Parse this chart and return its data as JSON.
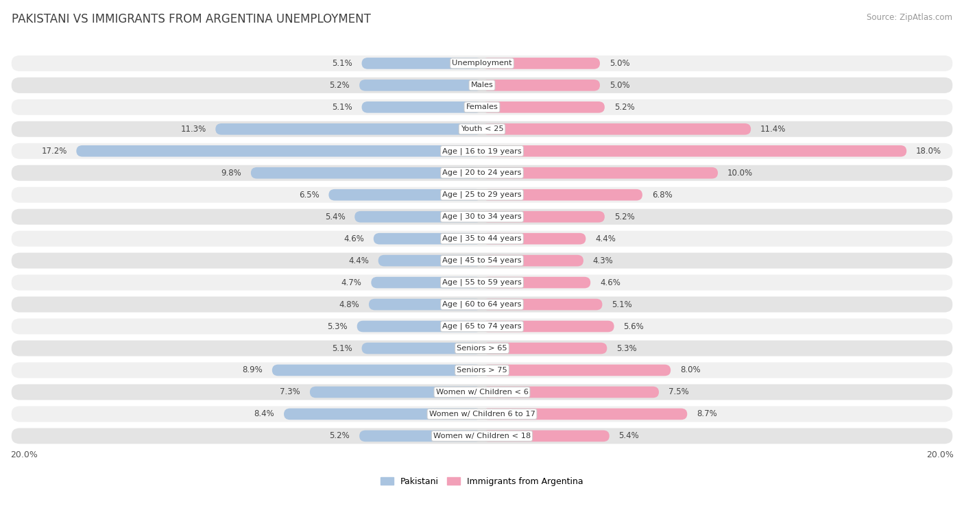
{
  "title": "PAKISTANI VS IMMIGRANTS FROM ARGENTINA UNEMPLOYMENT",
  "source": "Source: ZipAtlas.com",
  "categories": [
    "Unemployment",
    "Males",
    "Females",
    "Youth < 25",
    "Age | 16 to 19 years",
    "Age | 20 to 24 years",
    "Age | 25 to 29 years",
    "Age | 30 to 34 years",
    "Age | 35 to 44 years",
    "Age | 45 to 54 years",
    "Age | 55 to 59 years",
    "Age | 60 to 64 years",
    "Age | 65 to 74 years",
    "Seniors > 65",
    "Seniors > 75",
    "Women w/ Children < 6",
    "Women w/ Children 6 to 17",
    "Women w/ Children < 18"
  ],
  "pakistani": [
    5.1,
    5.2,
    5.1,
    11.3,
    17.2,
    9.8,
    6.5,
    5.4,
    4.6,
    4.4,
    4.7,
    4.8,
    5.3,
    5.1,
    8.9,
    7.3,
    8.4,
    5.2
  ],
  "argentina": [
    5.0,
    5.0,
    5.2,
    11.4,
    18.0,
    10.0,
    6.8,
    5.2,
    4.4,
    4.3,
    4.6,
    5.1,
    5.6,
    5.3,
    8.0,
    7.5,
    8.7,
    5.4
  ],
  "max_val": 20.0,
  "bar_color_pakistani": "#aac4e0",
  "bar_color_argentina": "#f2a0b8",
  "row_bg_light": "#f0f0f0",
  "row_bg_dark": "#e4e4e4",
  "title_color": "#404040",
  "legend_pakistani": "Pakistani",
  "legend_argentina": "Immigrants from Argentina"
}
